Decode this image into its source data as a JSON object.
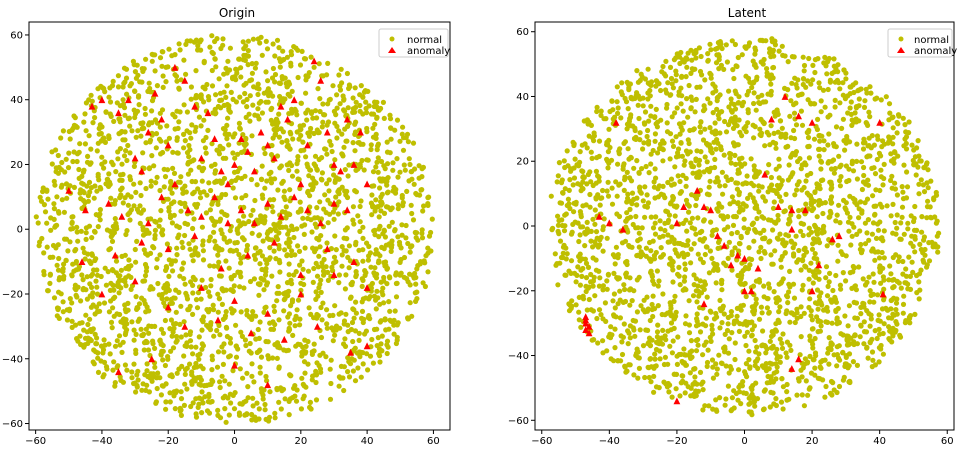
{
  "figure": {
    "colors": {
      "normal": "#bfbf00",
      "anomaly": "#ff0000",
      "axis": "#000000",
      "legend_border": "#cccccc"
    }
  },
  "chart_data": [
    {
      "type": "scatter",
      "title": "Origin",
      "xlabel": "",
      "ylabel": "",
      "xlim": [
        -62,
        65
      ],
      "ylim": [
        -62,
        64
      ],
      "xticks": [
        -60,
        -40,
        -20,
        0,
        20,
        40,
        60
      ],
      "yticks": [
        -60,
        -40,
        -20,
        0,
        20,
        40,
        60
      ],
      "legend": {
        "position": "top-right",
        "entries": [
          "normal",
          "anomaly"
        ]
      },
      "series": [
        {
          "name": "normal",
          "marker": "circle",
          "color": "#bfbf00",
          "shape": "cloud",
          "center": [
            0,
            0
          ],
          "radius": 60
        },
        {
          "name": "anomaly",
          "marker": "triangle",
          "color": "#ff0000",
          "x": [
            -43,
            -40,
            -35,
            -32,
            -30,
            -28,
            -26,
            -24,
            -22,
            -20,
            -18,
            -15,
            -12,
            -10,
            -8,
            -6,
            -4,
            -2,
            0,
            2,
            4,
            6,
            8,
            10,
            12,
            14,
            16,
            18,
            20,
            22,
            24,
            26,
            28,
            30,
            32,
            34,
            36,
            38,
            40,
            -50,
            -45,
            -38,
            -34,
            -26,
            -22,
            -18,
            -14,
            -10,
            -6,
            -2,
            2,
            6,
            10,
            14,
            18,
            22,
            26,
            30,
            34,
            -46,
            -36,
            -28,
            -20,
            -12,
            -4,
            4,
            12,
            20,
            28,
            36,
            -40,
            -30,
            -20,
            -10,
            0,
            10,
            20,
            30,
            40,
            -15,
            -5,
            5,
            15,
            25,
            35,
            40,
            -25,
            -35,
            0,
            10
          ],
          "y": [
            38,
            40,
            36,
            40,
            22,
            18,
            30,
            42,
            34,
            26,
            50,
            46,
            38,
            22,
            36,
            28,
            18,
            14,
            20,
            28,
            24,
            18,
            30,
            26,
            22,
            38,
            34,
            40,
            14,
            26,
            52,
            46,
            30,
            20,
            18,
            34,
            20,
            30,
            14,
            12,
            6,
            8,
            4,
            2,
            10,
            14,
            6,
            4,
            10,
            2,
            6,
            2,
            8,
            4,
            10,
            6,
            2,
            8,
            6,
            -10,
            -8,
            -4,
            -6,
            -2,
            -12,
            -8,
            -4,
            -14,
            -6,
            -10,
            -20,
            -16,
            -24,
            -18,
            -22,
            -26,
            -20,
            -14,
            -18,
            -30,
            -28,
            -32,
            -34,
            -30,
            -38,
            -36,
            -40,
            -44,
            -42,
            -48
          ]
        }
      ]
    },
    {
      "type": "scatter",
      "title": "Latent",
      "xlabel": "",
      "ylabel": "",
      "xlim": [
        -62,
        62
      ],
      "ylim": [
        -63,
        63
      ],
      "xticks": [
        -60,
        -40,
        -20,
        0,
        20,
        40,
        60
      ],
      "yticks": [
        -60,
        -40,
        -20,
        0,
        20,
        40,
        60
      ],
      "legend": {
        "position": "top-right",
        "entries": [
          "normal",
          "anomaly"
        ]
      },
      "series": [
        {
          "name": "normal",
          "marker": "circle",
          "color": "#bfbf00",
          "shape": "cloud",
          "center": [
            0,
            0
          ],
          "radius": 58
        },
        {
          "name": "anomaly",
          "marker": "triangle",
          "color": "#ff0000",
          "x": [
            -38,
            -43,
            -40,
            -36,
            -20,
            -18,
            -14,
            -12,
            -10,
            -8,
            -6,
            -4,
            -2,
            0,
            2,
            4,
            6,
            8,
            10,
            12,
            14,
            16,
            18,
            20,
            22,
            26,
            28,
            40,
            -20,
            -12,
            0,
            14,
            16,
            20,
            41,
            14,
            -47,
            -47,
            -46,
            -47,
            -46,
            -47
          ],
          "y": [
            32,
            3,
            1,
            -1,
            1,
            6,
            11,
            6,
            5,
            -3,
            -6,
            -12,
            -9,
            -10,
            -20,
            -13,
            16,
            33,
            6,
            40,
            5,
            34,
            5,
            32,
            -12,
            -4,
            -3,
            32,
            -54,
            -24,
            -20,
            -44,
            -41,
            -20,
            -21,
            -1,
            -29,
            -30,
            -31,
            -32,
            -33,
            -28
          ]
        }
      ]
    }
  ]
}
